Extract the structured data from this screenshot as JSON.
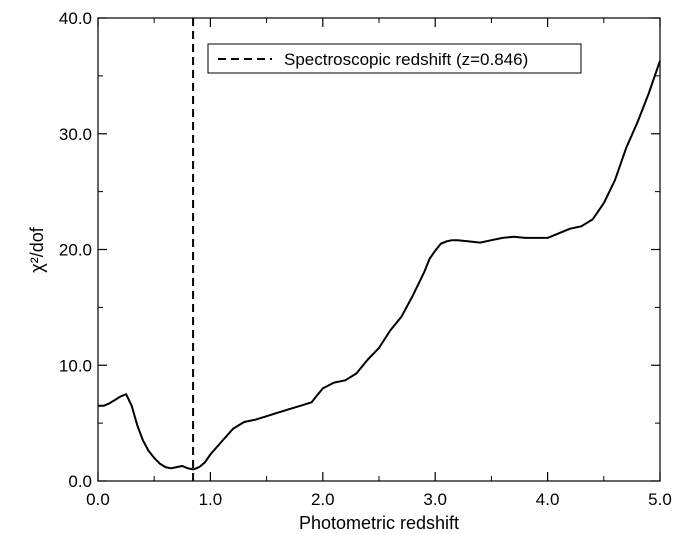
{
  "chart_data": {
    "type": "line",
    "title": "",
    "xlabel": "Photometric redshift",
    "ylabel": "χ²/dof",
    "xlim": [
      0.0,
      5.0
    ],
    "ylim": [
      0.0,
      40.0
    ],
    "x_ticks": [
      "0.0",
      "1.0",
      "2.0",
      "3.0",
      "4.0",
      "5.0"
    ],
    "y_ticks": [
      "0.0",
      "10.0",
      "20.0",
      "30.0",
      "40.0"
    ],
    "grid": false,
    "legend_position": "top-right",
    "series": [
      {
        "style": "solid",
        "color": "#000000",
        "x": [
          0.0,
          0.05,
          0.1,
          0.15,
          0.2,
          0.25,
          0.3,
          0.35,
          0.4,
          0.45,
          0.5,
          0.55,
          0.6,
          0.65,
          0.7,
          0.75,
          0.8,
          0.85,
          0.9,
          0.95,
          1.0,
          1.1,
          1.2,
          1.3,
          1.4,
          1.5,
          1.6,
          1.7,
          1.8,
          1.9,
          1.95,
          2.0,
          2.1,
          2.2,
          2.3,
          2.4,
          2.5,
          2.6,
          2.7,
          2.8,
          2.9,
          2.95,
          3.0,
          3.05,
          3.1,
          3.15,
          3.2,
          3.3,
          3.4,
          3.5,
          3.6,
          3.7,
          3.8,
          3.9,
          4.0,
          4.1,
          4.2,
          4.3,
          4.4,
          4.5,
          4.6,
          4.7,
          4.8,
          4.9,
          5.0
        ],
        "y": [
          6.5,
          6.5,
          6.7,
          7.0,
          7.3,
          7.5,
          6.5,
          4.8,
          3.5,
          2.6,
          2.0,
          1.5,
          1.2,
          1.1,
          1.2,
          1.3,
          1.1,
          1.0,
          1.2,
          1.6,
          2.3,
          3.4,
          4.5,
          5.1,
          5.3,
          5.6,
          5.9,
          6.2,
          6.5,
          6.8,
          7.4,
          8.0,
          8.5,
          8.7,
          9.3,
          10.5,
          11.5,
          13.0,
          14.2,
          16.0,
          18.0,
          19.2,
          19.9,
          20.5,
          20.7,
          20.8,
          20.8,
          20.7,
          20.6,
          20.8,
          21.0,
          21.1,
          21.0,
          21.0,
          21.0,
          21.4,
          21.8,
          22.0,
          22.6,
          24.0,
          26.0,
          28.8,
          31.0,
          33.5,
          36.3
        ]
      }
    ],
    "vline": {
      "x": 0.846,
      "style": "dashed",
      "label": "Spectroscopic redshift (z=0.846)"
    }
  }
}
